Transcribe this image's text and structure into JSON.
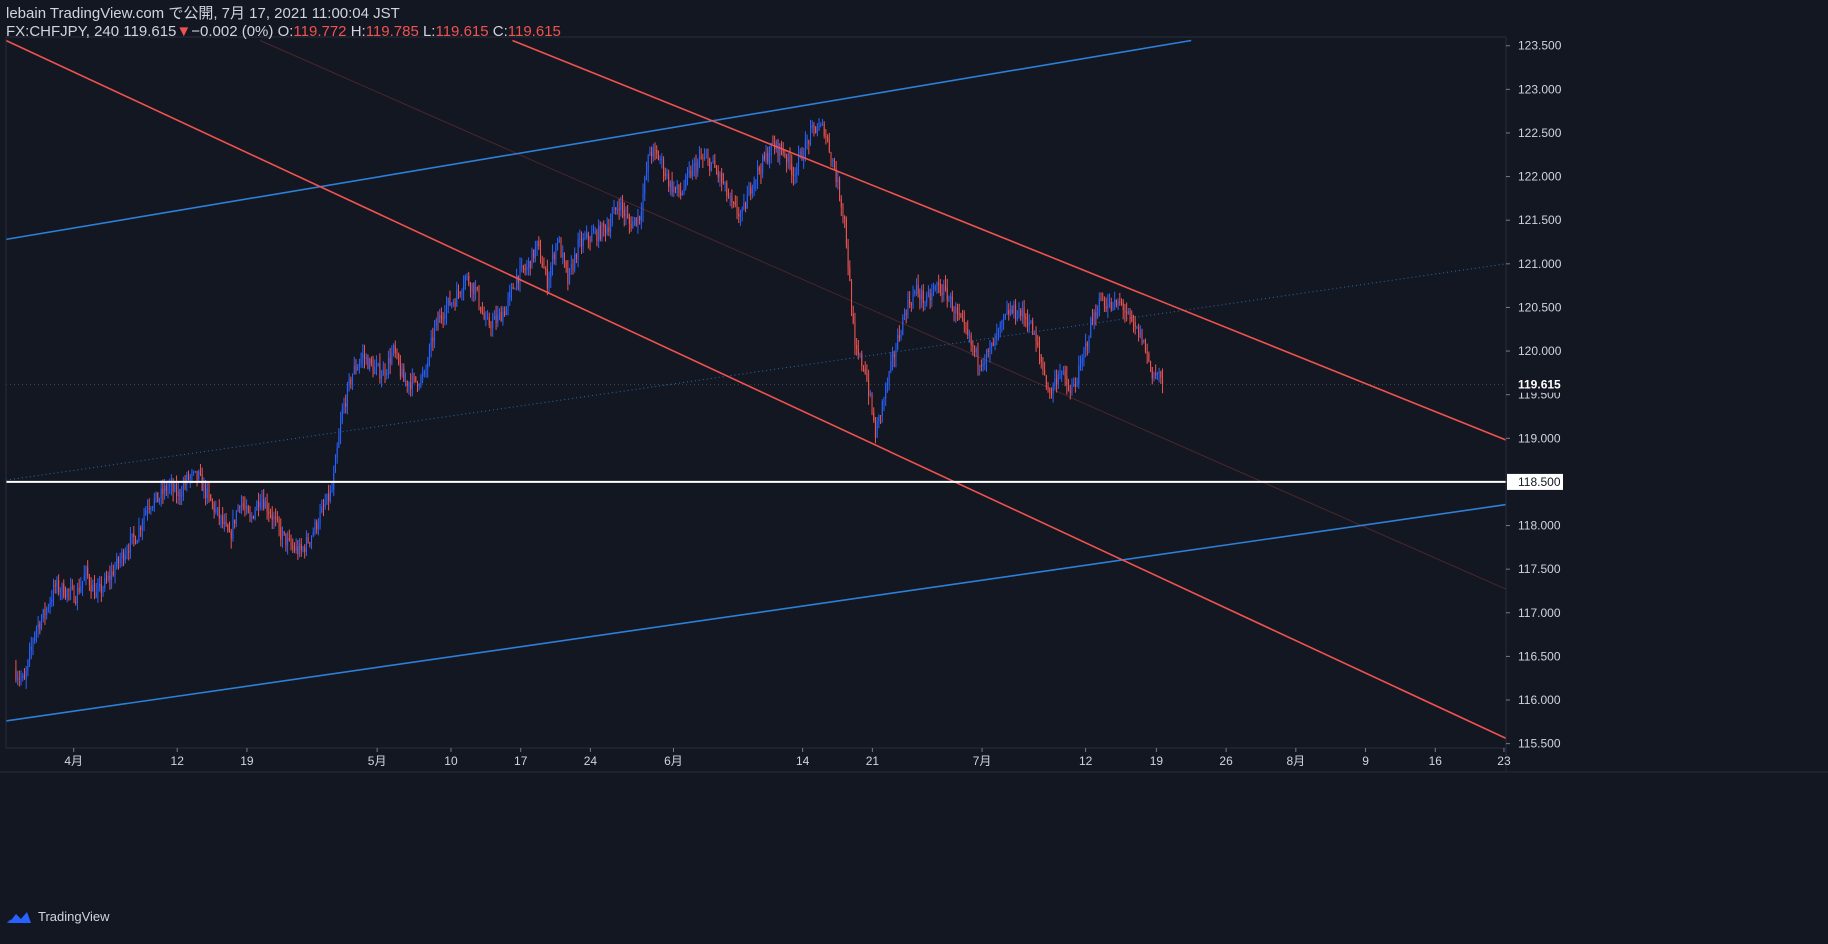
{
  "header": {
    "publish_line": "lebain TradingView.com で公開, 7月 17, 2021 11:00:04 JST",
    "symbol": "FX:CHFJPY, 240",
    "last": "119.615",
    "change_arrow": "▼",
    "change": "−0.002 (0%)",
    "o_label": "O:",
    "o_value": "119.772",
    "h_label": "H:",
    "h_value": "119.785",
    "l_label": "L:",
    "l_value": "119.615",
    "c_label": "C:",
    "c_value": "119.615"
  },
  "footer": {
    "brand": "TradingView"
  },
  "colors": {
    "background": "#131722",
    "up": "#2962ff",
    "down": "#ef5350",
    "channel_blue": "#2d7fd8",
    "channel_red": "#f0524f",
    "level_line": "#ffffff",
    "axis_text": "#d1d4dc"
  },
  "chart_data": {
    "type": "candlestick",
    "symbol": "FX:CHFJPY",
    "timeframe": "240",
    "ylim": [
      115.45,
      123.6
    ],
    "xlim_day": [
      -0.8,
      145.5
    ],
    "price_ticks": [
      "123.500",
      "123.000",
      "122.500",
      "122.000",
      "121.500",
      "121.000",
      "120.500",
      "120.000",
      "119.500",
      "119.000",
      "118.500",
      "118.000",
      "117.500",
      "117.000",
      "116.500",
      "116.000",
      "115.500"
    ],
    "x_ticks": [
      {
        "label": "4月",
        "day": 5.8
      },
      {
        "label": "12",
        "day": 15.9
      },
      {
        "label": "19",
        "day": 22.7
      },
      {
        "label": "5月",
        "day": 35.4
      },
      {
        "label": "10",
        "day": 42.6
      },
      {
        "label": "17",
        "day": 49.4
      },
      {
        "label": "24",
        "day": 56.2
      },
      {
        "label": "6月",
        "day": 64.3
      },
      {
        "label": "14",
        "day": 76.9
      },
      {
        "label": "21",
        "day": 83.7
      },
      {
        "label": "7月",
        "day": 94.4
      },
      {
        "label": "12",
        "day": 104.5
      },
      {
        "label": "19",
        "day": 111.4
      },
      {
        "label": "26",
        "day": 118.2
      },
      {
        "label": "8月",
        "day": 125.0
      },
      {
        "label": "9",
        "day": 131.8
      },
      {
        "label": "16",
        "day": 138.6
      },
      {
        "label": "23",
        "day": 145.3
      }
    ],
    "last_price": 119.615,
    "horizontal_level": 118.5,
    "close_path": [
      [
        0,
        116.35
      ],
      [
        1,
        116.2
      ],
      [
        2,
        116.8
      ],
      [
        3,
        117.0
      ],
      [
        4,
        117.3
      ],
      [
        5,
        117.25
      ],
      [
        6,
        117.2
      ],
      [
        7,
        117.45
      ],
      [
        8,
        117.2
      ],
      [
        9,
        117.35
      ],
      [
        10,
        117.55
      ],
      [
        11,
        117.75
      ],
      [
        12,
        117.9
      ],
      [
        13,
        118.25
      ],
      [
        14,
        118.3
      ],
      [
        15,
        118.45
      ],
      [
        16,
        118.35
      ],
      [
        17,
        118.55
      ],
      [
        18,
        118.55
      ],
      [
        19,
        118.3
      ],
      [
        20,
        118.1
      ],
      [
        21,
        117.85
      ],
      [
        22,
        118.3
      ],
      [
        23,
        118.05
      ],
      [
        24,
        118.35
      ],
      [
        25,
        118.15
      ],
      [
        26,
        117.9
      ],
      [
        27,
        117.75
      ],
      [
        28,
        117.7
      ],
      [
        29,
        117.9
      ],
      [
        30,
        118.15
      ],
      [
        31,
        118.4
      ],
      [
        32,
        119.3
      ],
      [
        33,
        119.75
      ],
      [
        34,
        119.95
      ],
      [
        35,
        119.8
      ],
      [
        36,
        119.75
      ],
      [
        37,
        120.0
      ],
      [
        38,
        119.65
      ],
      [
        39,
        119.65
      ],
      [
        40,
        119.7
      ],
      [
        41,
        120.25
      ],
      [
        42,
        120.5
      ],
      [
        43,
        120.6
      ],
      [
        44,
        120.85
      ],
      [
        45,
        120.7
      ],
      [
        46,
        120.3
      ],
      [
        47,
        120.35
      ],
      [
        48,
        120.5
      ],
      [
        49,
        120.85
      ],
      [
        50,
        120.95
      ],
      [
        51,
        121.2
      ],
      [
        52,
        120.8
      ],
      [
        53,
        121.3
      ],
      [
        54,
        120.8
      ],
      [
        55,
        121.2
      ],
      [
        56,
        121.3
      ],
      [
        57,
        121.35
      ],
      [
        58,
        121.45
      ],
      [
        59,
        121.7
      ],
      [
        60,
        121.45
      ],
      [
        61,
        121.55
      ],
      [
        62,
        122.3
      ],
      [
        63,
        122.2
      ],
      [
        64,
        121.9
      ],
      [
        65,
        121.8
      ],
      [
        66,
        122.05
      ],
      [
        67,
        122.2
      ],
      [
        68,
        122.15
      ],
      [
        69,
        121.95
      ],
      [
        70,
        121.65
      ],
      [
        71,
        121.55
      ],
      [
        72,
        121.95
      ],
      [
        73,
        122.15
      ],
      [
        74,
        122.35
      ],
      [
        75,
        122.3
      ],
      [
        76,
        122.05
      ],
      [
        77,
        122.3
      ],
      [
        78,
        122.55
      ],
      [
        79,
        122.55
      ],
      [
        80,
        122.1
      ],
      [
        81,
        121.5
      ],
      [
        82,
        120.0
      ],
      [
        83,
        119.8
      ],
      [
        84,
        119.05
      ],
      [
        85,
        119.55
      ],
      [
        86,
        120.05
      ],
      [
        87,
        120.5
      ],
      [
        88,
        120.7
      ],
      [
        89,
        120.55
      ],
      [
        90,
        120.75
      ],
      [
        91,
        120.65
      ],
      [
        92,
        120.4
      ],
      [
        93,
        120.15
      ],
      [
        94,
        119.9
      ],
      [
        95,
        119.95
      ],
      [
        96,
        120.2
      ],
      [
        97,
        120.45
      ],
      [
        98,
        120.45
      ],
      [
        99,
        120.35
      ],
      [
        100,
        119.95
      ],
      [
        101,
        119.5
      ],
      [
        102,
        119.8
      ],
      [
        103,
        119.5
      ],
      [
        104,
        119.8
      ],
      [
        105,
        120.3
      ],
      [
        106,
        120.6
      ],
      [
        107,
        120.5
      ],
      [
        108,
        120.55
      ],
      [
        109,
        120.3
      ],
      [
        110,
        120.15
      ],
      [
        111,
        119.75
      ],
      [
        112,
        119.7
      ]
    ],
    "down_candles_count_note": "≈",
    "drawings": [
      {
        "type": "trendline",
        "name": "blue-channel-upper",
        "color": "blue",
        "style": "solid",
        "p1": [
          -0.8,
          121.28
        ],
        "p2": [
          114.8,
          123.56
        ]
      },
      {
        "type": "trendline",
        "name": "blue-channel-lower",
        "color": "blue",
        "style": "solid",
        "p1": [
          -0.8,
          115.76
        ],
        "p2": [
          145.5,
          118.24
        ]
      },
      {
        "type": "trendline",
        "name": "blue-channel-mid",
        "color": "blue",
        "style": "dotted",
        "p1": [
          -0.8,
          118.52
        ],
        "p2": [
          145.5,
          121.0
        ]
      },
      {
        "type": "trendline",
        "name": "red-channel-upper",
        "color": "red",
        "style": "solid",
        "p1": [
          48.6,
          123.56
        ],
        "p2": [
          145.5,
          118.98
        ]
      },
      {
        "type": "trendline",
        "name": "red-channel-lower",
        "color": "red",
        "style": "solid",
        "p1": [
          -0.8,
          123.56
        ],
        "p2": [
          145.5,
          115.56
        ]
      },
      {
        "type": "trendline",
        "name": "red-channel-mid",
        "color": "red",
        "style": "faint",
        "p1": [
          24.0,
          123.56
        ],
        "p2": [
          145.5,
          117.27
        ]
      }
    ]
  }
}
